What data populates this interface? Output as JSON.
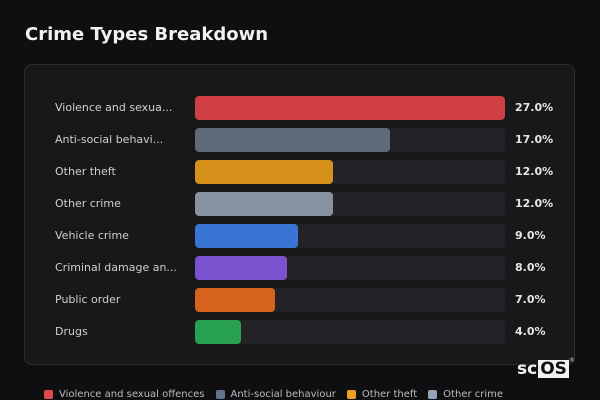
{
  "title": "Crime Types Breakdown",
  "chart_data": {
    "type": "bar",
    "orientation": "horizontal",
    "xlim": [
      0,
      27
    ],
    "categories": [
      "Violence and sexua...",
      "Anti-social behavi...",
      "Other theft",
      "Other crime",
      "Vehicle crime",
      "Criminal damage an...",
      "Public order",
      "Drugs"
    ],
    "values": [
      27.0,
      17.0,
      12.0,
      12.0,
      9.0,
      8.0,
      7.0,
      4.0
    ],
    "value_labels": [
      "27.0%",
      "17.0%",
      "12.0%",
      "12.0%",
      "9.0%",
      "8.0%",
      "7.0%",
      "4.0%"
    ],
    "colors": [
      "#cf3f43",
      "#5f6b7a",
      "#d4901a",
      "#8793a2",
      "#3a74d4",
      "#7a52cf",
      "#d6641f",
      "#27a04f"
    ],
    "legend": [
      {
        "label": "Violence and sexual offences",
        "color": "#e0494c"
      },
      {
        "label": "Anti-social behaviour",
        "color": "#64748b"
      },
      {
        "label": "Other theft",
        "color": "#f0a020"
      },
      {
        "label": "Other crime",
        "color": "#94a3b8"
      }
    ],
    "legend_position": "bottom"
  },
  "watermark": {
    "prefix": "sc",
    "boxed": "OS",
    "mark": "®"
  }
}
